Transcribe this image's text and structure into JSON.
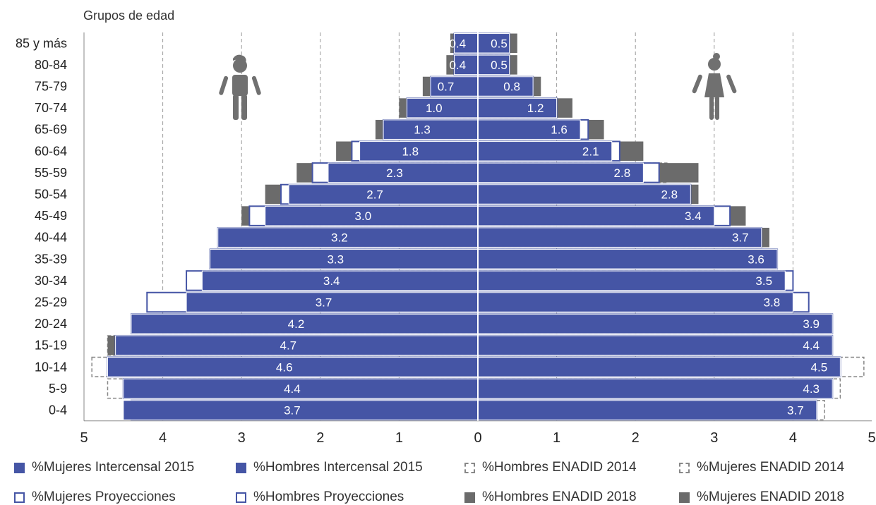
{
  "chart_data": {
    "type": "bar",
    "subtype": "population-pyramid",
    "orientation": "horizontal",
    "y_axis_title": "Grupos de edad",
    "categories": [
      "85 y más",
      "80-84",
      "75-79",
      "70-74",
      "65-69",
      "60-64",
      "55-59",
      "50-54",
      "45-49",
      "40-44",
      "35-39",
      "30-34",
      "25-29",
      "20-24",
      "15-19",
      "10-14",
      "5-9",
      "0-4"
    ],
    "x_ticks": [
      "5",
      "4",
      "3",
      "2",
      "1",
      "0",
      "1",
      "2",
      "3",
      "4",
      "5"
    ],
    "xlim": [
      -5,
      5
    ],
    "grid": "vertical dashed",
    "series": [
      {
        "name": "%Mujeres Intercensal 2015",
        "side": "left",
        "style": "solid-blue",
        "color": "#4555a5",
        "values": [
          0.3,
          0.3,
          0.6,
          0.9,
          1.2,
          1.5,
          1.9,
          2.4,
          2.7,
          3.3,
          3.4,
          3.5,
          3.7,
          4.4,
          4.6,
          4.7,
          4.5,
          4.5
        ]
      },
      {
        "name": "%Hombres Intercensal 2015",
        "side": "right",
        "style": "solid-blue",
        "color": "#4555a5",
        "values": [
          0.4,
          0.4,
          0.7,
          1.0,
          1.3,
          1.7,
          2.1,
          2.7,
          3.0,
          3.6,
          3.8,
          3.9,
          4.0,
          4.5,
          4.5,
          4.6,
          4.5,
          4.3
        ]
      },
      {
        "name": "%Hombres ENADID 2014",
        "side": "left",
        "style": "dashed-outline",
        "color": "#888888",
        "values": [
          0.3,
          0.3,
          0.6,
          0.9,
          1.2,
          1.6,
          2.0,
          2.4,
          2.8,
          3.3,
          3.4,
          3.5,
          3.8,
          4.4,
          4.7,
          4.9,
          4.7,
          4.4
        ]
      },
      {
        "name": "%Mujeres ENADID 2014",
        "side": "right",
        "style": "dashed-outline",
        "color": "#888888",
        "values": [
          0.4,
          0.4,
          0.7,
          1.0,
          1.4,
          1.8,
          2.4,
          2.7,
          3.1,
          3.6,
          3.8,
          3.9,
          4.0,
          4.4,
          4.5,
          4.9,
          4.6,
          4.4
        ]
      },
      {
        "name": "%Mujeres Proyecciones",
        "side": "left",
        "style": "outline-blue",
        "color": "#4555a5",
        "values": [
          0.3,
          0.3,
          0.6,
          0.9,
          1.2,
          1.6,
          2.1,
          2.5,
          2.9,
          3.3,
          3.4,
          3.7,
          4.2,
          4.4,
          4.6,
          4.7,
          4.5,
          4.4
        ]
      },
      {
        "name": "%Hombres Proyecciones",
        "side": "right",
        "style": "outline-blue",
        "color": "#4555a5",
        "values": [
          0.4,
          0.4,
          0.7,
          1.0,
          1.4,
          1.8,
          2.3,
          2.7,
          3.2,
          3.6,
          3.8,
          4.0,
          4.2,
          4.5,
          4.5,
          4.6,
          4.5,
          4.3
        ]
      },
      {
        "name": "%Hombres ENADID 2018",
        "side": "left",
        "style": "solid-gray",
        "color": "#6b6b6b",
        "values": [
          0.35,
          0.4,
          0.7,
          1.0,
          1.3,
          1.8,
          2.3,
          2.7,
          3.0,
          3.2,
          3.3,
          3.4,
          3.7,
          4.2,
          4.7,
          4.6,
          4.4,
          3.7
        ]
      },
      {
        "name": "%Mujeres ENADID 2018",
        "side": "right",
        "style": "solid-gray",
        "color": "#6b6b6b",
        "values": [
          0.5,
          0.5,
          0.8,
          1.2,
          1.6,
          2.1,
          2.8,
          2.8,
          3.4,
          3.7,
          3.6,
          3.5,
          3.8,
          3.9,
          4.4,
          4.5,
          4.3,
          3.7
        ]
      }
    ],
    "data_labels_left": [
      "0.4",
      "0.4",
      "0.7",
      "1.0",
      "1.3",
      "1.8",
      "2.3",
      "2.7",
      "3.0",
      "3.2",
      "3.3",
      "3.4",
      "3.7",
      "4.2",
      "4.7",
      "4.6",
      "4.4",
      "3.7"
    ],
    "data_labels_right": [
      "0.5",
      "0.5",
      "0.8",
      "1.2",
      "1.6",
      "2.1",
      "2.8",
      "2.8",
      "3.4",
      "3.7",
      "3.6",
      "3.5",
      "3.8",
      "3.9",
      "4.4",
      "4.5",
      "4.3",
      "3.7"
    ],
    "icons": {
      "left": "male-figure-icon",
      "right": "female-figure-icon"
    },
    "legend_position": "bottom"
  },
  "legend": [
    {
      "label": "%Mujeres Intercensal 2015",
      "style": "solid-blue"
    },
    {
      "label": "%Hombres Intercensal 2015",
      "style": "solid-blue"
    },
    {
      "label": "%Hombres ENADID 2014",
      "style": "dashed"
    },
    {
      "label": "%Mujeres ENADID 2014",
      "style": "dashed"
    },
    {
      "label": "%Mujeres Proyecciones",
      "style": "outline-blue"
    },
    {
      "label": "%Hombres Proyecciones",
      "style": "outline-blue"
    },
    {
      "label": "%Hombres ENADID 2018",
      "style": "gray"
    },
    {
      "label": "%Mujeres ENADID 2018",
      "style": "gray"
    }
  ]
}
